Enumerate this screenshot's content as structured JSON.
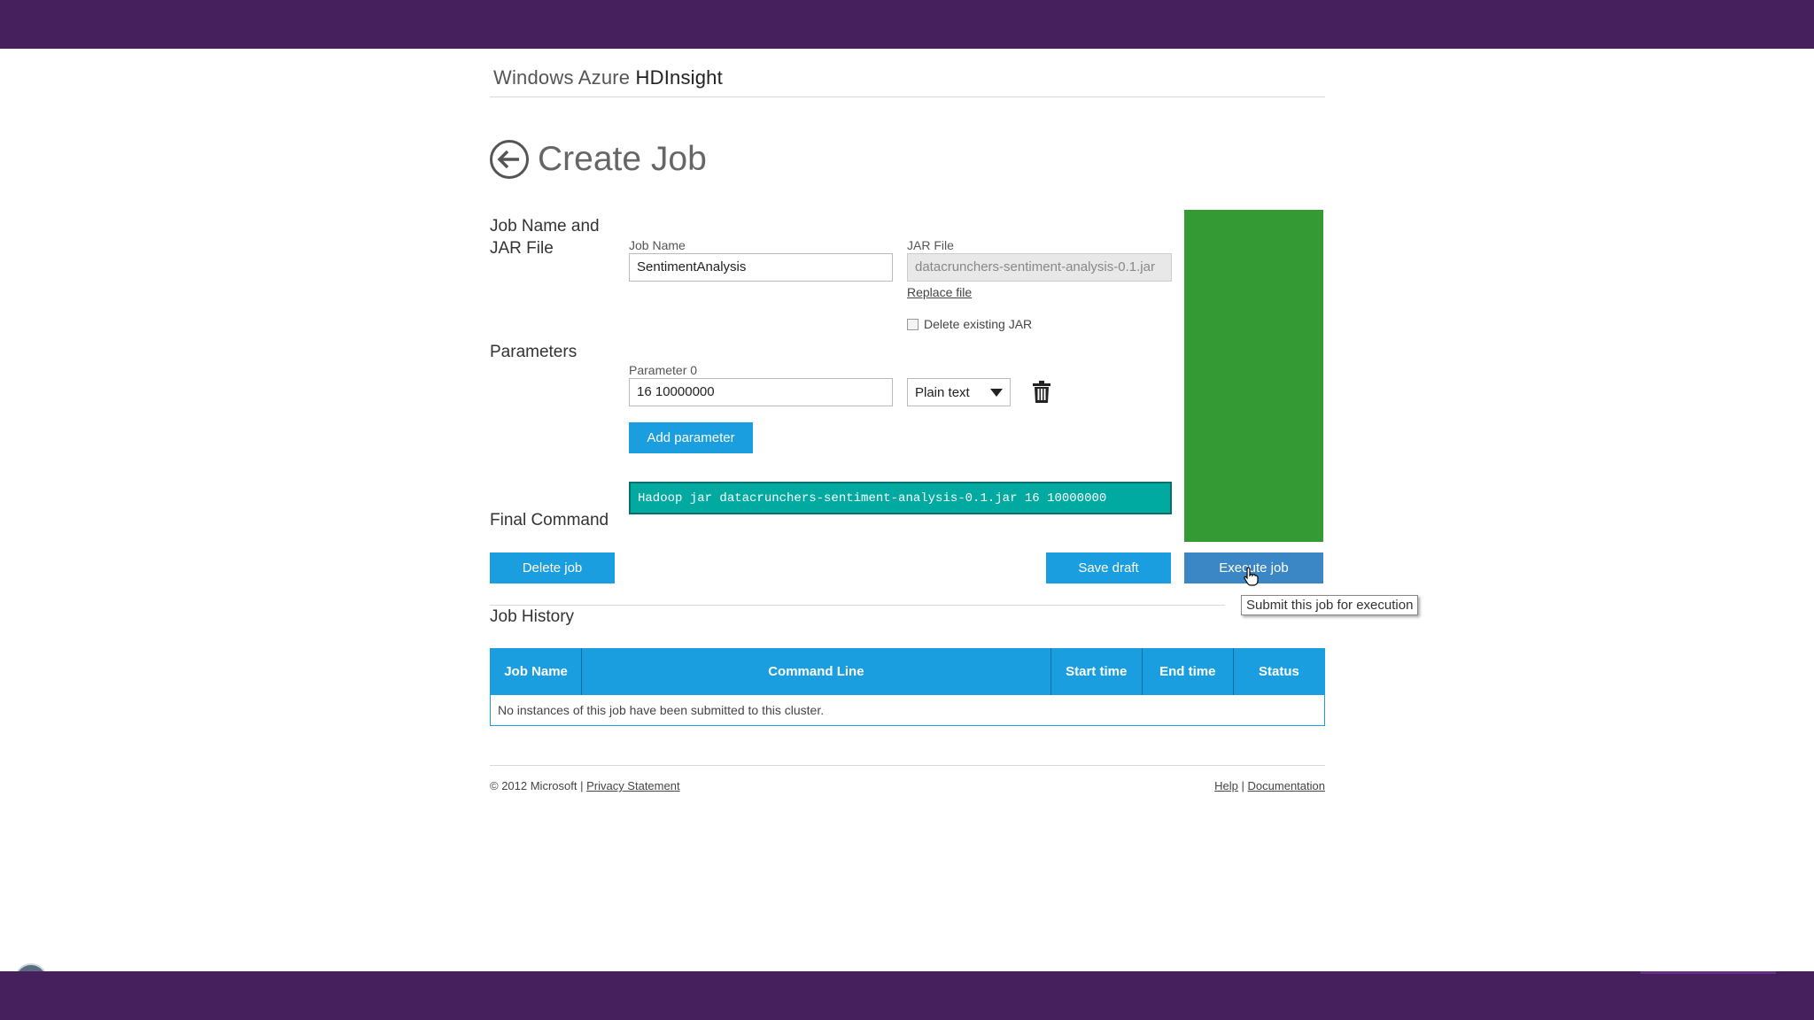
{
  "brand": {
    "prefix": "Windows Azure",
    "product": "HDInsight"
  },
  "page": {
    "title": "Create Job"
  },
  "sections": {
    "job_name_jar": "Job Name and JAR File",
    "parameters": "Parameters",
    "final_command": "Final Command",
    "job_history": "Job History"
  },
  "job_name": {
    "label": "Job Name",
    "value": "SentimentAnalysis"
  },
  "jar_file": {
    "label": "JAR File",
    "value": "datacrunchers-sentiment-analysis-0.1.jar",
    "replace_link": "Replace file",
    "delete_existing_label": "Delete existing JAR",
    "delete_existing_checked": false
  },
  "parameters": [
    {
      "label": "Parameter 0",
      "value": "16 10000000",
      "type": "Plain text"
    }
  ],
  "buttons": {
    "add_parameter": "Add parameter",
    "delete_job": "Delete job",
    "save_draft": "Save draft",
    "execute_job": "Execute job"
  },
  "final_command": "Hadoop jar datacrunchers-sentiment-analysis-0.1.jar 16 10000000",
  "tooltip": "Submit this job for execution",
  "history": {
    "columns": [
      "Job Name",
      "Command Line",
      "Start time",
      "End time",
      "Status"
    ],
    "empty_message": "No instances of this job have been submitted to this cluster."
  },
  "footer": {
    "copyright": "© 2012 Microsoft |",
    "privacy": "Privacy Statement",
    "help": "Help",
    "separator": "|",
    "documentation": "Documentation"
  },
  "colors": {
    "header_bar": "#46205c",
    "button_blue": "#1b9ee0",
    "command_teal": "#00aaa0",
    "panel_green": "#349a34"
  }
}
